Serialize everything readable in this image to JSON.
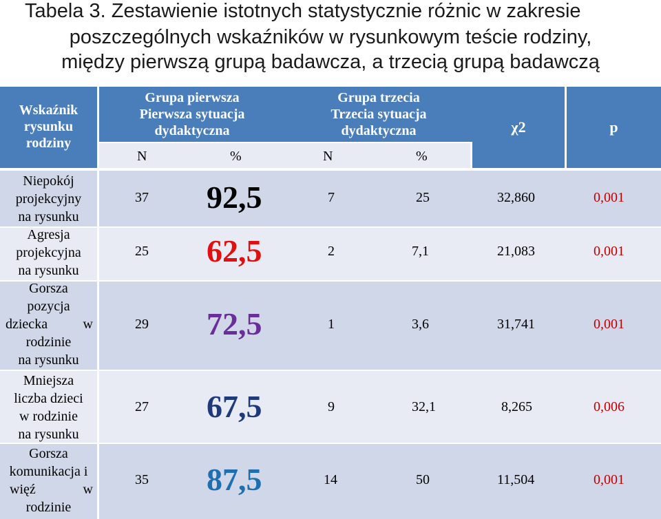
{
  "title": {
    "line1": "Tabela 3. Zestawienie istotnych statystycznie różnic w zakresie",
    "line2": "poszczególnych wskaźników w rysunkowym teście rodziny,",
    "line3": "między pierwszą grupą badawcza, a trzecią grupą badawczą"
  },
  "header": {
    "col0": [
      "Wskaźnik",
      "rysunku",
      "rodziny"
    ],
    "group1": [
      "Grupa pierwsza",
      "Pierwsza sytuacja",
      "dydaktyczna"
    ],
    "group3": [
      "Grupa trzecia",
      "Trzecia sytuacja",
      "dydaktyczna"
    ],
    "chi": "χ2",
    "p": "p",
    "sub": [
      "N",
      "%",
      "N",
      "%"
    ]
  },
  "rows": [
    {
      "label": [
        "Niepokój",
        "projekcyjny",
        "na rysunku"
      ],
      "n1": "37",
      "pct1": "92,5",
      "n3": "7",
      "pct3": "25",
      "chi": "32,860",
      "p": "0,001",
      "pct1_color": "#000000"
    },
    {
      "label": [
        "Agresja",
        "projekcyjna",
        "na rysunku"
      ],
      "n1": "25",
      "pct1": "62,5",
      "n3": "2",
      "pct3": "7,1",
      "chi": "21,083",
      "p": "0,001",
      "pct1_color": "#e01010"
    },
    {
      "label": [
        "Gorsza",
        "pozycja",
        "dziecka w",
        "rodzinie",
        "na rysunku"
      ],
      "n1": "29",
      "pct1": "72,5",
      "n3": "1",
      "pct3": "3,6",
      "chi": "31,741",
      "p": "0,001",
      "pct1_color": "#6a2e9a"
    },
    {
      "label": [
        "Mniejsza",
        "liczba dzieci",
        "w rodzinie",
        "na rysunku"
      ],
      "n1": "27",
      "pct1": "67,5",
      "n3": "9",
      "pct3": "32,1",
      "chi": "8,265",
      "p": "0,006",
      "pct1_color": "#1f3a7a"
    },
    {
      "label": [
        "Gorsza",
        "komunikacja i",
        "więź w",
        "rodzinie"
      ],
      "n1": "35",
      "pct1": "87,5",
      "n3": "14",
      "pct3": "50",
      "chi": "11,504",
      "p": "0,001",
      "pct1_color": "#1f6fb0"
    }
  ]
}
